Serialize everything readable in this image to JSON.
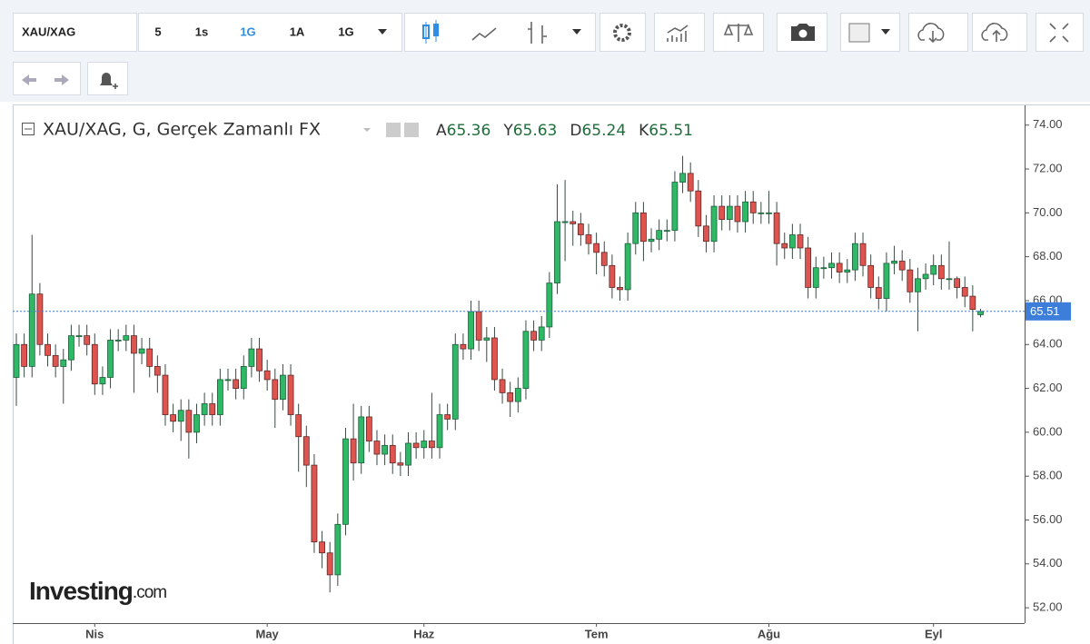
{
  "toolbar": {
    "symbol": "XAU/XAG",
    "intervals": [
      "5",
      "1s",
      "1G",
      "1A",
      "1G"
    ]
  },
  "watermark": {
    "brand": "Investing",
    "suffix": ".com"
  },
  "chart_data": {
    "type": "candlestick",
    "title": "XAU/XAG, G, Gerçek Zamanlı FX",
    "ohlc_labels": [
      "A",
      "Y",
      "D",
      "K"
    ],
    "categories": [
      null,
      null,
      null,
      null,
      null,
      null,
      null,
      null,
      null,
      null,
      "Nis",
      null,
      null,
      null,
      null,
      null,
      null,
      null,
      null,
      null,
      null,
      null,
      null,
      null,
      null,
      null,
      null,
      null,
      null,
      null,
      null,
      null,
      "May",
      null,
      null,
      null,
      null,
      null,
      null,
      null,
      null,
      null,
      null,
      null,
      null,
      null,
      null,
      null,
      null,
      null,
      null,
      null,
      "Haz",
      null,
      null,
      null,
      null,
      null,
      null,
      null,
      null,
      null,
      null,
      null,
      null,
      null,
      null,
      null,
      null,
      null,
      null,
      null,
      null,
      null,
      "Tem",
      null,
      null,
      null,
      null,
      null,
      null,
      null,
      null,
      null,
      null,
      null,
      null,
      null,
      null,
      null,
      null,
      null,
      null,
      null,
      null,
      null,
      "Ağu",
      null,
      null,
      null,
      null,
      null,
      null,
      null,
      null,
      null,
      null,
      null,
      null,
      null,
      null,
      null,
      null,
      null,
      null,
      null,
      null,
      "Eyl",
      null,
      null,
      null,
      null,
      null,
      null
    ],
    "open": [
      62.5,
      64.0,
      63.0,
      66.3,
      64.0,
      63.5,
      63.0,
      63.3,
      64.4,
      64.4,
      64.0,
      62.2,
      62.5,
      64.2,
      64.2,
      64.4,
      63.6,
      63.8,
      63.0,
      62.6,
      60.8,
      60.5,
      61.0,
      60.0,
      60.8,
      61.3,
      60.8,
      62.4,
      62.4,
      62.0,
      63.0,
      63.8,
      62.8,
      62.4,
      61.5,
      62.6,
      60.8,
      59.8,
      58.5,
      55.0,
      54.5,
      53.5,
      55.8,
      59.7,
      58.6,
      60.7,
      59.6,
      59.0,
      59.4,
      58.6,
      58.5,
      59.5,
      59.3,
      59.6,
      59.3,
      60.8,
      60.6,
      64.0,
      63.8,
      65.5,
      64.2,
      64.3,
      62.4,
      61.8,
      61.4,
      62.0,
      64.6,
      64.2,
      64.8,
      66.8,
      69.6,
      69.6,
      69.5,
      69.0,
      68.6,
      68.2,
      67.6,
      66.6,
      66.5,
      68.6,
      70.0,
      68.7,
      68.8,
      69.2,
      69.2,
      71.4,
      71.8,
      71.0,
      69.4,
      68.7,
      70.3,
      69.7,
      70.3,
      69.6,
      70.5,
      70.0,
      70.0,
      70.0,
      68.6,
      68.4,
      69.0,
      68.4,
      66.6,
      67.5,
      67.5,
      67.7,
      67.3,
      67.4,
      68.6,
      67.6,
      66.6,
      66.1,
      67.7,
      67.8,
      67.4,
      66.4,
      67.0,
      67.2,
      67.6,
      67.0,
      67.0,
      66.6,
      66.2,
      65.36
    ],
    "high": [
      64.5,
      64.5,
      69.0,
      66.8,
      64.5,
      64.0,
      63.8,
      64.9,
      64.9,
      64.9,
      64.5,
      63.0,
      64.7,
      64.7,
      64.9,
      64.9,
      64.3,
      64.3,
      63.5,
      63.1,
      61.3,
      61.5,
      61.5,
      61.3,
      61.8,
      61.8,
      62.9,
      62.9,
      62.9,
      63.5,
      64.3,
      64.3,
      63.3,
      62.9,
      63.1,
      63.1,
      61.3,
      60.3,
      59.0,
      55.5,
      55.0,
      56.3,
      60.2,
      61.3,
      61.2,
      61.2,
      60.1,
      59.9,
      59.9,
      59.1,
      60.0,
      60.0,
      60.1,
      61.8,
      61.3,
      61.3,
      64.5,
      64.5,
      66.0,
      66.0,
      64.8,
      64.8,
      62.9,
      62.3,
      62.5,
      65.1,
      65.1,
      65.3,
      67.3,
      71.3,
      71.5,
      70.1,
      70.0,
      69.5,
      69.1,
      68.7,
      68.1,
      67.1,
      69.1,
      70.5,
      70.5,
      69.3,
      69.7,
      69.7,
      71.9,
      72.6,
      72.3,
      71.5,
      69.9,
      70.8,
      70.8,
      70.8,
      70.8,
      71.0,
      71.0,
      70.5,
      71.0,
      70.5,
      69.1,
      69.5,
      69.5,
      68.9,
      68.0,
      68.0,
      68.2,
      68.2,
      67.9,
      69.1,
      69.1,
      68.1,
      67.1,
      68.2,
      68.5,
      68.3,
      67.9,
      67.5,
      67.7,
      68.1,
      68.1,
      68.7,
      67.1,
      67.1,
      66.7,
      65.63
    ],
    "low": [
      61.2,
      62.5,
      62.5,
      63.5,
      63.0,
      62.5,
      61.3,
      62.8,
      63.9,
      63.5,
      61.7,
      61.7,
      62.0,
      63.7,
      63.7,
      61.8,
      63.1,
      62.5,
      61.8,
      60.3,
      60.0,
      59.6,
      58.8,
      59.5,
      60.3,
      60.3,
      60.3,
      61.9,
      61.5,
      61.5,
      62.5,
      62.3,
      61.9,
      60.2,
      61.0,
      60.3,
      58.2,
      57.5,
      54.5,
      53.8,
      52.7,
      53.0,
      55.3,
      57.8,
      58.1,
      59.1,
      58.5,
      58.5,
      58.1,
      58.0,
      58.0,
      58.8,
      58.8,
      58.8,
      58.8,
      60.1,
      60.1,
      63.3,
      63.3,
      63.7,
      63.2,
      61.9,
      61.3,
      60.7,
      60.9,
      61.5,
      63.7,
      63.7,
      64.3,
      66.3,
      67.8,
      68.5,
      68.5,
      68.1,
      67.2,
      67.1,
      66.1,
      66.0,
      66.0,
      68.1,
      67.8,
      68.2,
      68.3,
      68.7,
      68.7,
      70.9,
      70.5,
      68.9,
      68.2,
      68.2,
      69.2,
      69.2,
      69.1,
      69.1,
      69.5,
      69.5,
      69.5,
      67.6,
      67.9,
      67.9,
      67.9,
      66.1,
      66.1,
      67.0,
      67.0,
      66.8,
      66.8,
      66.9,
      67.1,
      66.1,
      65.6,
      65.5,
      67.2,
      66.9,
      65.9,
      64.6,
      66.5,
      66.7,
      66.5,
      66.5,
      66.1,
      65.7,
      64.6,
      65.24
    ],
    "close": [
      64.0,
      63.0,
      66.3,
      64.0,
      63.5,
      63.0,
      63.3,
      64.4,
      64.4,
      64.0,
      62.2,
      62.5,
      64.2,
      64.2,
      64.4,
      63.6,
      63.8,
      63.0,
      62.6,
      60.8,
      60.5,
      61.0,
      60.0,
      60.8,
      61.3,
      60.8,
      62.4,
      62.4,
      62.0,
      63.0,
      63.8,
      62.8,
      62.4,
      61.5,
      62.6,
      60.8,
      59.8,
      58.5,
      55.0,
      54.5,
      53.5,
      55.8,
      59.7,
      58.6,
      60.7,
      59.6,
      59.0,
      59.4,
      58.6,
      58.5,
      59.5,
      59.3,
      59.6,
      59.3,
      60.8,
      60.6,
      64.0,
      63.8,
      65.5,
      64.2,
      64.3,
      62.4,
      61.8,
      61.4,
      62.0,
      64.6,
      64.2,
      64.8,
      66.8,
      69.6,
      69.6,
      69.5,
      69.0,
      68.6,
      68.2,
      67.6,
      66.6,
      66.5,
      68.6,
      70.0,
      68.7,
      68.8,
      69.2,
      69.2,
      71.4,
      71.8,
      71.0,
      69.4,
      68.7,
      70.3,
      69.7,
      70.3,
      69.6,
      70.5,
      70.0,
      70.0,
      70.0,
      68.6,
      68.4,
      69.0,
      68.4,
      66.6,
      67.5,
      67.5,
      67.7,
      67.3,
      67.4,
      68.6,
      67.6,
      66.6,
      66.1,
      67.7,
      67.8,
      67.4,
      66.4,
      67.0,
      67.2,
      67.6,
      67.0,
      67.0,
      66.6,
      66.2,
      65.6,
      65.51
    ],
    "up_color": "#2fb865",
    "down_color": "#e0544f",
    "last_price_color": "#3d7edb",
    "ylim": [
      51.3,
      74.9
    ],
    "yticks": [
      {
        "value": 52,
        "label": "52.00"
      },
      {
        "value": 54,
        "label": "54.00"
      },
      {
        "value": 56,
        "label": "56.00"
      },
      {
        "value": 58,
        "label": "58.00"
      },
      {
        "value": 60,
        "label": "60.00"
      },
      {
        "value": 62,
        "label": "62.00"
      },
      {
        "value": 64,
        "label": "64.00"
      },
      {
        "value": 66,
        "label": "66.00"
      },
      {
        "value": 68,
        "label": "68.00"
      },
      {
        "value": 70,
        "label": "70.00"
      },
      {
        "value": 72,
        "label": "72.00"
      },
      {
        "value": 74,
        "label": "74.00"
      }
    ],
    "grid": false
  }
}
